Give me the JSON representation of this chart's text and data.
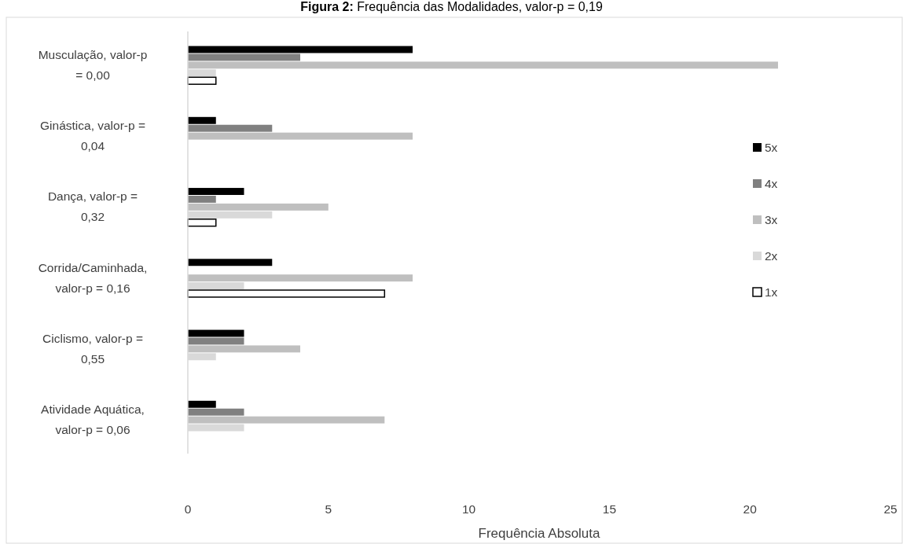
{
  "chart_data": {
    "type": "bar",
    "orientation": "horizontal",
    "title": "Figura 2: Frequência das Modalidades, valor-p = 0,19",
    "xlabel": "Frequência Absoluta",
    "categories": [
      "Musculação, valor-p = 0,00",
      "Ginástica, valor-p = 0,04",
      "Dança, valor-p = 0,32",
      "Corrida/Caminhada, valor-p = 0,16",
      "Ciclismo, valor-p = 0,55",
      "Atividade Aquática, valor-p = 0,06"
    ],
    "series": [
      {
        "name": "5x",
        "color": "#000000",
        "values": [
          8,
          1,
          2,
          3,
          2,
          1
        ]
      },
      {
        "name": "4x",
        "color": "#808080",
        "values": [
          4,
          3,
          1,
          0,
          2,
          2
        ]
      },
      {
        "name": "3x",
        "color": "#bfbfbf",
        "values": [
          21,
          8,
          5,
          8,
          4,
          7
        ]
      },
      {
        "name": "2x",
        "color": "#d9d9d9",
        "values": [
          1,
          0,
          3,
          2,
          1,
          2
        ]
      },
      {
        "name": "1x",
        "color": "#ffffff",
        "values": [
          1,
          0,
          1,
          7,
          0,
          0
        ]
      }
    ],
    "xlim": [
      0,
      25
    ],
    "xticks": [
      0,
      5,
      10,
      15,
      20,
      25
    ],
    "legend": "right"
  }
}
